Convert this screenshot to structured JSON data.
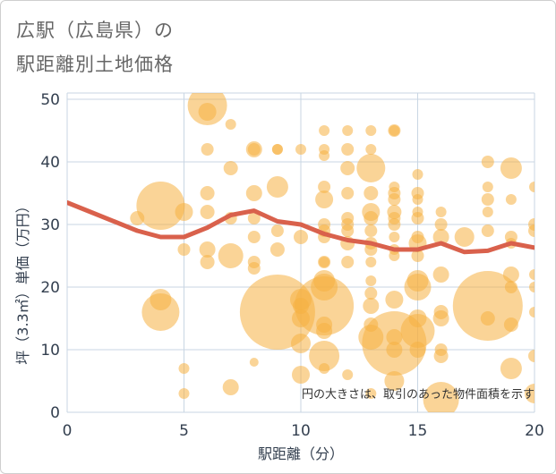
{
  "chart_data": {
    "type": "scatter",
    "title_lines": [
      "広駅（広島県）の",
      "駅距離別土地価格"
    ],
    "xlabel": "駅距離（分）",
    "ylabel": "坪（3.3㎡）単価（万円）",
    "xlim": [
      0,
      20
    ],
    "ylim": [
      0,
      51
    ],
    "x_ticks": [
      0,
      5,
      10,
      15,
      20
    ],
    "y_ticks": [
      0,
      10,
      20,
      30,
      40,
      50
    ],
    "grid": true,
    "note": "円の大きさは、取引のあった物件面積を示す",
    "colors": {
      "bubble": "#f5b041",
      "trend": "#d9614c",
      "grid": "#c9d6e3",
      "text": "#333f4f"
    },
    "trend_line": {
      "x": [
        0,
        1,
        2,
        3,
        4,
        5,
        6,
        7,
        8,
        9,
        10,
        11,
        12,
        13,
        14,
        15,
        16,
        17,
        18,
        19,
        20
      ],
      "y": [
        33.5,
        32.0,
        30.5,
        29.0,
        28.0,
        28.0,
        29.5,
        31.5,
        32.2,
        30.5,
        30.0,
        28.5,
        27.5,
        27.0,
        26.0,
        26.0,
        27.0,
        25.6,
        25.8,
        27.0,
        26.3
      ]
    },
    "bubbles": [
      {
        "x": 3,
        "y": 31,
        "r": 8
      },
      {
        "x": 4,
        "y": 33,
        "r": 27
      },
      {
        "x": 4,
        "y": 18,
        "r": 12
      },
      {
        "x": 4,
        "y": 16,
        "r": 21
      },
      {
        "x": 5,
        "y": 32,
        "r": 10
      },
      {
        "x": 5,
        "y": 26,
        "r": 7
      },
      {
        "x": 5,
        "y": 7,
        "r": 6
      },
      {
        "x": 5,
        "y": 3,
        "r": 6
      },
      {
        "x": 6,
        "y": 49,
        "r": 22
      },
      {
        "x": 6,
        "y": 48,
        "r": 10
      },
      {
        "x": 6,
        "y": 42,
        "r": 7
      },
      {
        "x": 6,
        "y": 35,
        "r": 8
      },
      {
        "x": 6,
        "y": 32,
        "r": 8
      },
      {
        "x": 6,
        "y": 26,
        "r": 9
      },
      {
        "x": 6,
        "y": 24,
        "r": 8
      },
      {
        "x": 7,
        "y": 46,
        "r": 6
      },
      {
        "x": 7,
        "y": 39,
        "r": 8
      },
      {
        "x": 7,
        "y": 31,
        "r": 7
      },
      {
        "x": 7,
        "y": 25,
        "r": 14
      },
      {
        "x": 7,
        "y": 4,
        "r": 9
      },
      {
        "x": 8,
        "y": 42,
        "r": 9
      },
      {
        "x": 8,
        "y": 42,
        "r": 7
      },
      {
        "x": 8,
        "y": 35,
        "r": 9
      },
      {
        "x": 8,
        "y": 31,
        "r": 7
      },
      {
        "x": 8,
        "y": 28,
        "r": 7
      },
      {
        "x": 8,
        "y": 24,
        "r": 7
      },
      {
        "x": 8,
        "y": 23,
        "r": 7
      },
      {
        "x": 8,
        "y": 8,
        "r": 5
      },
      {
        "x": 9,
        "y": 42,
        "r": 6
      },
      {
        "x": 9,
        "y": 42,
        "r": 6
      },
      {
        "x": 9,
        "y": 36,
        "r": 12
      },
      {
        "x": 9,
        "y": 29,
        "r": 7
      },
      {
        "x": 9,
        "y": 26,
        "r": 8
      },
      {
        "x": 9,
        "y": 16,
        "r": 42
      },
      {
        "x": 10,
        "y": 42,
        "r": 6
      },
      {
        "x": 10,
        "y": 28,
        "r": 8
      },
      {
        "x": 10,
        "y": 18,
        "r": 12
      },
      {
        "x": 10,
        "y": 17,
        "r": 9
      },
      {
        "x": 10,
        "y": 15,
        "r": 10
      },
      {
        "x": 10,
        "y": 11,
        "r": 11
      },
      {
        "x": 10,
        "y": 6,
        "r": 10
      },
      {
        "x": 11,
        "y": 45,
        "r": 6
      },
      {
        "x": 11,
        "y": 42,
        "r": 6
      },
      {
        "x": 11,
        "y": 41,
        "r": 6
      },
      {
        "x": 11,
        "y": 36,
        "r": 7
      },
      {
        "x": 11,
        "y": 34,
        "r": 10
      },
      {
        "x": 11,
        "y": 30,
        "r": 7
      },
      {
        "x": 11,
        "y": 29,
        "r": 7
      },
      {
        "x": 11,
        "y": 28,
        "r": 7
      },
      {
        "x": 11,
        "y": 24,
        "r": 6
      },
      {
        "x": 11,
        "y": 24,
        "r": 7
      },
      {
        "x": 11,
        "y": 21,
        "r": 12
      },
      {
        "x": 11,
        "y": 20,
        "r": 15
      },
      {
        "x": 11,
        "y": 17,
        "r": 33
      },
      {
        "x": 11,
        "y": 14,
        "r": 9
      },
      {
        "x": 11,
        "y": 13,
        "r": 9
      },
      {
        "x": 11,
        "y": 9,
        "r": 17
      },
      {
        "x": 11,
        "y": 7,
        "r": 6
      },
      {
        "x": 12,
        "y": 45,
        "r": 6
      },
      {
        "x": 12,
        "y": 42,
        "r": 7
      },
      {
        "x": 12,
        "y": 39,
        "r": 8
      },
      {
        "x": 12,
        "y": 35,
        "r": 7
      },
      {
        "x": 12,
        "y": 31,
        "r": 7
      },
      {
        "x": 12,
        "y": 30,
        "r": 7
      },
      {
        "x": 12,
        "y": 29,
        "r": 7
      },
      {
        "x": 12,
        "y": 27,
        "r": 8
      },
      {
        "x": 12,
        "y": 24,
        "r": 7
      },
      {
        "x": 12,
        "y": 6,
        "r": 6
      },
      {
        "x": 13,
        "y": 45,
        "r": 6
      },
      {
        "x": 13,
        "y": 42,
        "r": 6
      },
      {
        "x": 13,
        "y": 39,
        "r": 16
      },
      {
        "x": 13,
        "y": 35,
        "r": 8
      },
      {
        "x": 13,
        "y": 32,
        "r": 10
      },
      {
        "x": 13,
        "y": 31,
        "r": 8
      },
      {
        "x": 13,
        "y": 29,
        "r": 7
      },
      {
        "x": 13,
        "y": 27,
        "r": 7
      },
      {
        "x": 13,
        "y": 26,
        "r": 7
      },
      {
        "x": 13,
        "y": 24,
        "r": 6
      },
      {
        "x": 13,
        "y": 21,
        "r": 6
      },
      {
        "x": 13,
        "y": 19,
        "r": 7
      },
      {
        "x": 13,
        "y": 17,
        "r": 9
      },
      {
        "x": 13,
        "y": 14,
        "r": 8
      },
      {
        "x": 13,
        "y": 12,
        "r": 14
      },
      {
        "x": 13,
        "y": 3,
        "r": 6
      },
      {
        "x": 14,
        "y": 45,
        "r": 7
      },
      {
        "x": 14,
        "y": 45,
        "r": 6
      },
      {
        "x": 14,
        "y": 36,
        "r": 6
      },
      {
        "x": 14,
        "y": 35,
        "r": 7
      },
      {
        "x": 14,
        "y": 34,
        "r": 7
      },
      {
        "x": 14,
        "y": 32,
        "r": 8
      },
      {
        "x": 14,
        "y": 31,
        "r": 7
      },
      {
        "x": 14,
        "y": 30,
        "r": 7
      },
      {
        "x": 14,
        "y": 28,
        "r": 6
      },
      {
        "x": 14,
        "y": 26,
        "r": 6
      },
      {
        "x": 14,
        "y": 25,
        "r": 6
      },
      {
        "x": 14,
        "y": 18,
        "r": 10
      },
      {
        "x": 14,
        "y": 12,
        "r": 9
      },
      {
        "x": 14,
        "y": 11,
        "r": 36
      },
      {
        "x": 14,
        "y": 10,
        "r": 9
      },
      {
        "x": 14,
        "y": 5,
        "r": 11
      },
      {
        "x": 15,
        "y": 38,
        "r": 6
      },
      {
        "x": 15,
        "y": 35,
        "r": 7
      },
      {
        "x": 15,
        "y": 34,
        "r": 6
      },
      {
        "x": 15,
        "y": 32,
        "r": 6
      },
      {
        "x": 15,
        "y": 31,
        "r": 7
      },
      {
        "x": 15,
        "y": 28,
        "r": 7
      },
      {
        "x": 15,
        "y": 27,
        "r": 10
      },
      {
        "x": 15,
        "y": 25,
        "r": 7
      },
      {
        "x": 15,
        "y": 21,
        "r": 12
      },
      {
        "x": 15,
        "y": 20,
        "r": 15
      },
      {
        "x": 15,
        "y": 15,
        "r": 10
      },
      {
        "x": 15,
        "y": 13,
        "r": 19
      },
      {
        "x": 15,
        "y": 10,
        "r": 9
      },
      {
        "x": 16,
        "y": 32,
        "r": 6
      },
      {
        "x": 16,
        "y": 30,
        "r": 7
      },
      {
        "x": 16,
        "y": 28,
        "r": 9
      },
      {
        "x": 16,
        "y": 22,
        "r": 9
      },
      {
        "x": 16,
        "y": 16,
        "r": 8
      },
      {
        "x": 16,
        "y": 15,
        "r": 9
      },
      {
        "x": 16,
        "y": 10,
        "r": 7
      },
      {
        "x": 16,
        "y": 9,
        "r": 8
      },
      {
        "x": 16,
        "y": 2,
        "r": 20
      },
      {
        "x": 17,
        "y": 28,
        "r": 11
      },
      {
        "x": 18,
        "y": 40,
        "r": 7
      },
      {
        "x": 18,
        "y": 36,
        "r": 6
      },
      {
        "x": 18,
        "y": 34,
        "r": 7
      },
      {
        "x": 18,
        "y": 32,
        "r": 6
      },
      {
        "x": 18,
        "y": 29,
        "r": 7
      },
      {
        "x": 18,
        "y": 17,
        "r": 39
      },
      {
        "x": 18,
        "y": 15,
        "r": 8
      },
      {
        "x": 19,
        "y": 39,
        "r": 12
      },
      {
        "x": 19,
        "y": 34,
        "r": 6
      },
      {
        "x": 19,
        "y": 28,
        "r": 7
      },
      {
        "x": 19,
        "y": 27,
        "r": 6
      },
      {
        "x": 19,
        "y": 22,
        "r": 9
      },
      {
        "x": 19,
        "y": 20,
        "r": 7
      },
      {
        "x": 19,
        "y": 14,
        "r": 8
      },
      {
        "x": 19,
        "y": 7,
        "r": 12
      },
      {
        "x": 20,
        "y": 36,
        "r": 6
      },
      {
        "x": 20,
        "y": 30,
        "r": 7
      },
      {
        "x": 20,
        "y": 29,
        "r": 7
      },
      {
        "x": 20,
        "y": 22,
        "r": 6
      },
      {
        "x": 20,
        "y": 20,
        "r": 6
      },
      {
        "x": 20,
        "y": 16,
        "r": 6
      },
      {
        "x": 20,
        "y": 9,
        "r": 7
      },
      {
        "x": 20,
        "y": 3,
        "r": 11
      }
    ]
  }
}
